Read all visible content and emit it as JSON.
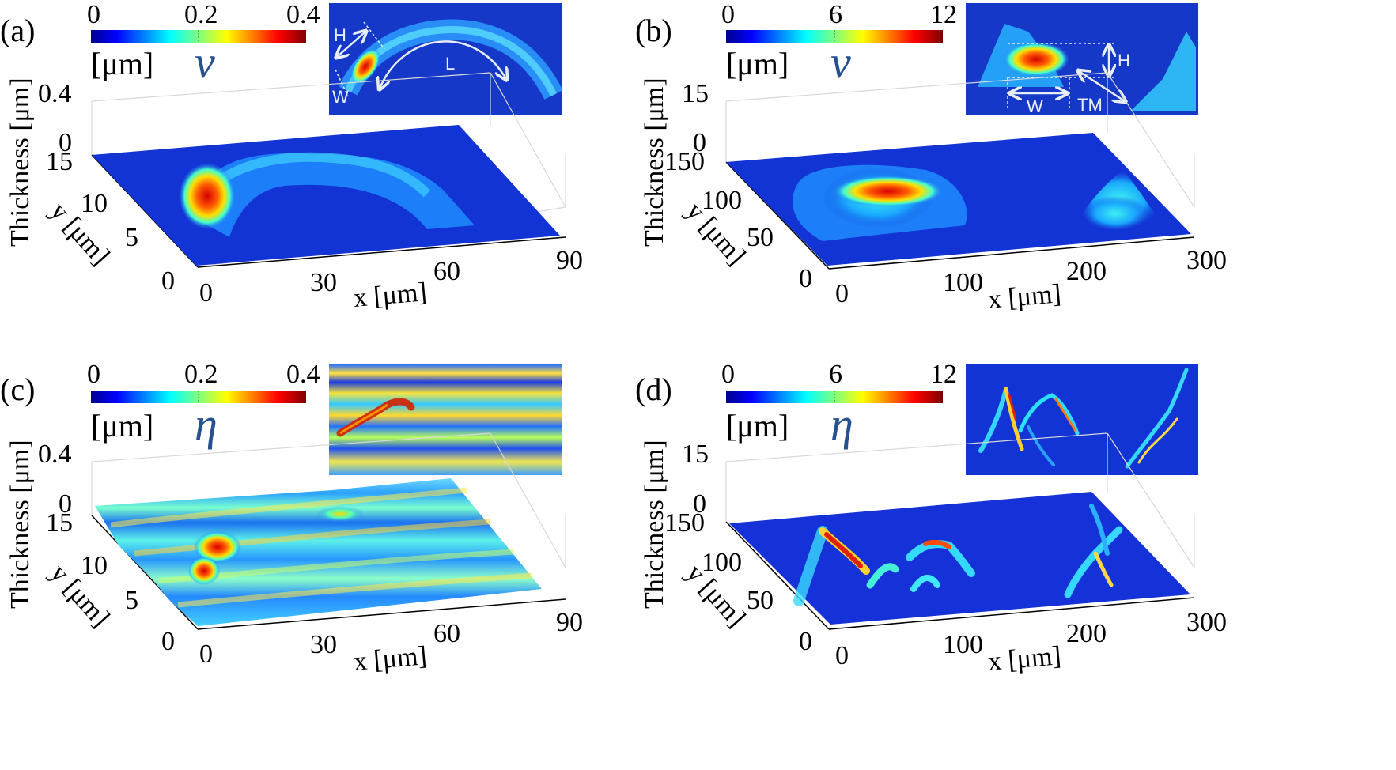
{
  "figure": {
    "panels": [
      {
        "letter": "(a)",
        "symbol": "ν",
        "unit": "[μm]",
        "colorbar_ticks": [
          "0",
          "0.2",
          "0.4"
        ],
        "z_label": "Thickness [μm]",
        "z_ticks": [
          "0.4",
          "0"
        ],
        "y_label": "y [μm]",
        "y_ticks": [
          "15",
          "10",
          "5",
          "0"
        ],
        "x_label": "x [μm]",
        "x_ticks": [
          "0",
          "30",
          "60",
          "90"
        ],
        "inset_labels": [
          "H",
          "L",
          "W"
        ]
      },
      {
        "letter": "(b)",
        "symbol": "ν",
        "unit": "[μm]",
        "colorbar_ticks": [
          "0",
          "6",
          "12"
        ],
        "z_label": "Thickness [μm]",
        "z_ticks": [
          "15",
          "0"
        ],
        "y_label": "y [μm]",
        "y_ticks": [
          "150",
          "100",
          "50",
          "0"
        ],
        "x_label": "x [μm]",
        "x_ticks": [
          "0",
          "100",
          "200",
          "300"
        ],
        "inset_labels": [
          "H",
          "W",
          "TM"
        ]
      },
      {
        "letter": "(c)",
        "symbol": "η",
        "unit": "[μm]",
        "colorbar_ticks": [
          "0",
          "0.2",
          "0.4"
        ],
        "z_label": "Thickness [μm]",
        "z_ticks": [
          "0.4",
          "0"
        ],
        "y_label": "y [μm]",
        "y_ticks": [
          "15",
          "10",
          "5",
          "0"
        ],
        "x_label": "x [μm]",
        "x_ticks": [
          "0",
          "30",
          "60",
          "90"
        ],
        "inset_labels": []
      },
      {
        "letter": "(d)",
        "symbol": "η",
        "unit": "[μm]",
        "colorbar_ticks": [
          "0",
          "6",
          "12"
        ],
        "z_label": "Thickness [μm]",
        "z_ticks": [
          "15",
          "0"
        ],
        "y_label": "y [μm]",
        "y_ticks": [
          "150",
          "100",
          "50",
          "0"
        ],
        "x_label": "x [μm]",
        "x_ticks": [
          "0",
          "100",
          "200",
          "300"
        ],
        "inset_labels": []
      }
    ]
  },
  "chart_data": [
    {
      "type": "surface3d",
      "panel": "(a)",
      "quantity": "ν",
      "unit": "μm",
      "x_range": [
        0,
        90
      ],
      "y_range": [
        0,
        15
      ],
      "z_range": [
        0,
        0.4
      ],
      "colorbar_range": [
        0,
        0.4
      ],
      "colormap": "jet",
      "xlabel": "x [μm]",
      "ylabel": "y [μm]",
      "zlabel": "Thickness [μm]"
    },
    {
      "type": "surface3d",
      "panel": "(b)",
      "quantity": "ν",
      "unit": "μm",
      "x_range": [
        0,
        300
      ],
      "y_range": [
        0,
        150
      ],
      "z_range": [
        0,
        15
      ],
      "colorbar_range": [
        0,
        12
      ],
      "colormap": "jet",
      "xlabel": "x [μm]",
      "ylabel": "y [μm]",
      "zlabel": "Thickness [μm]"
    },
    {
      "type": "surface3d",
      "panel": "(c)",
      "quantity": "η",
      "unit": "μm",
      "x_range": [
        0,
        90
      ],
      "y_range": [
        0,
        15
      ],
      "z_range": [
        0,
        0.4
      ],
      "colorbar_range": [
        0,
        0.4
      ],
      "colormap": "jet",
      "xlabel": "x [μm]",
      "ylabel": "y [μm]",
      "zlabel": "Thickness [μm]"
    },
    {
      "type": "surface3d",
      "panel": "(d)",
      "quantity": "η",
      "unit": "μm",
      "x_range": [
        0,
        300
      ],
      "y_range": [
        0,
        150
      ],
      "z_range": [
        0,
        15
      ],
      "colorbar_range": [
        0,
        12
      ],
      "colormap": "jet",
      "xlabel": "x [μm]",
      "ylabel": "y [μm]",
      "zlabel": "Thickness [μm]"
    }
  ],
  "colors": {
    "surface_base": "#1030c8",
    "colormap_low": "#00008f",
    "colormap_high": "#800000",
    "symbol": "#27508f"
  }
}
